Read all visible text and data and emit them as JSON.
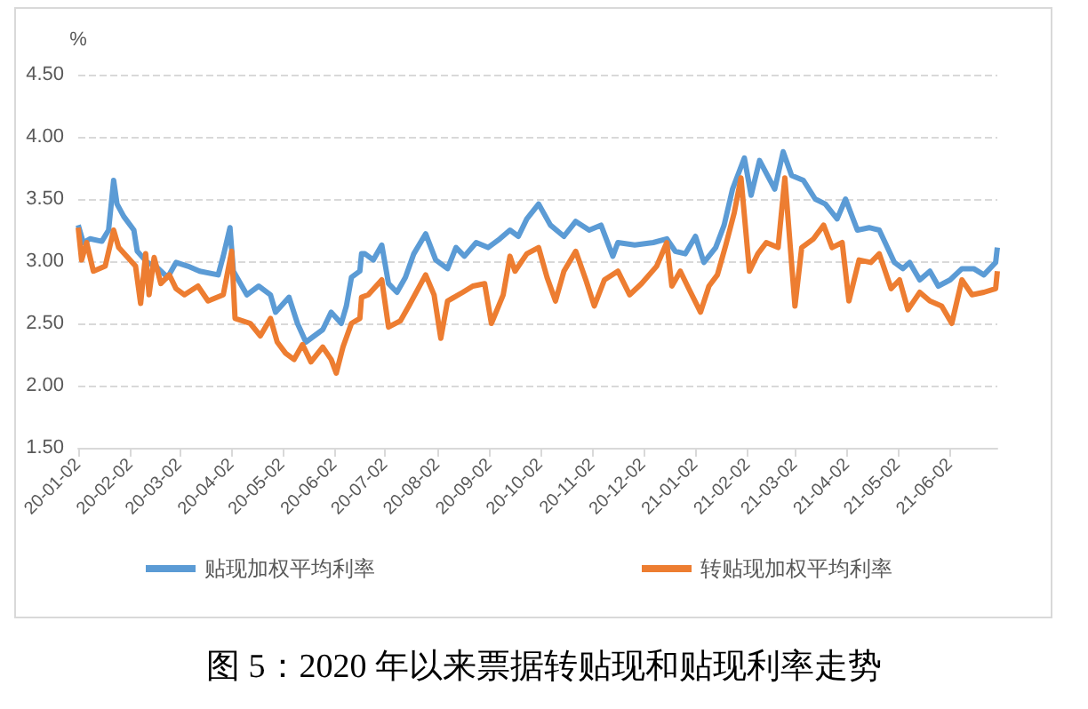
{
  "chart_data": {
    "type": "line",
    "ylabel": "%",
    "annotations": [
      "图 5：2020 年以来票据转贴现和贴现利率走势"
    ],
    "ylim": [
      1.5,
      4.5
    ],
    "yticks": [
      {
        "value": 1.5,
        "label": "1.50"
      },
      {
        "value": 2,
        "label": "2.00"
      },
      {
        "value": 2.5,
        "label": "2.50"
      },
      {
        "value": 3,
        "label": "3.00"
      },
      {
        "value": 3.5,
        "label": "3.50"
      },
      {
        "value": 4,
        "label": "4.00"
      },
      {
        "value": 4.5,
        "label": "4.50"
      }
    ],
    "xlim": [
      "2020-01-02",
      "2021-06-30"
    ],
    "xticks": [
      {
        "value": "2020-01-02",
        "label": "20-01-02"
      },
      {
        "value": "2020-02-02",
        "label": "20-02-02"
      },
      {
        "value": "2020-03-02",
        "label": "20-03-02"
      },
      {
        "value": "2020-04-02",
        "label": "20-04-02"
      },
      {
        "value": "2020-05-02",
        "label": "20-05-02"
      },
      {
        "value": "2020-06-02",
        "label": "20-06-02"
      },
      {
        "value": "2020-07-02",
        "label": "20-07-02"
      },
      {
        "value": "2020-08-02",
        "label": "20-08-02"
      },
      {
        "value": "2020-09-02",
        "label": "20-09-02"
      },
      {
        "value": "2020-10-02",
        "label": "20-10-02"
      },
      {
        "value": "2020-11-02",
        "label": "20-11-02"
      },
      {
        "value": "2020-12-02",
        "label": "20-12-02"
      },
      {
        "value": "2021-01-02",
        "label": "21-01-02"
      },
      {
        "value": "2021-02-02",
        "label": "21-02-02"
      },
      {
        "value": "2021-03-02",
        "label": "21-03-02"
      },
      {
        "value": "2021-04-02",
        "label": "21-04-02"
      },
      {
        "value": "2021-05-02",
        "label": "21-05-02"
      },
      {
        "value": "2021-06-02",
        "label": "21-06-02"
      }
    ],
    "grid": "y",
    "legend": "bottom",
    "marker": "none",
    "line_style": "solid",
    "series": [
      {
        "name": "贴现加权平均利率",
        "color": "#5b9bd5",
        "x": [
          "2020-01-02",
          "2020-01-05",
          "2020-01-09",
          "2020-01-16",
          "2020-01-20",
          "2020-01-23",
          "2020-01-25",
          "2020-01-29",
          "2020-02-04",
          "2020-02-06",
          "2020-02-12",
          "2020-02-17",
          "2020-02-24",
          "2020-02-29",
          "2020-03-07",
          "2020-03-14",
          "2020-03-25",
          "2020-03-28",
          "2020-04-01",
          "2020-04-03",
          "2020-04-11",
          "2020-04-18",
          "2020-04-25",
          "2020-04-28",
          "2020-05-06",
          "2020-05-11",
          "2020-05-16",
          "2020-05-21",
          "2020-05-26",
          "2020-05-31",
          "2020-06-06",
          "2020-06-09",
          "2020-06-12",
          "2020-06-17",
          "2020-06-18",
          "2020-06-20",
          "2020-06-25",
          "2020-06-30",
          "2020-07-04",
          "2020-07-09",
          "2020-07-14",
          "2020-07-19",
          "2020-07-26",
          "2020-08-01",
          "2020-08-08",
          "2020-08-13",
          "2020-08-18",
          "2020-08-25",
          "2020-09-01",
          "2020-09-08",
          "2020-09-14",
          "2020-09-19",
          "2020-09-24",
          "2020-10-01",
          "2020-10-08",
          "2020-10-16",
          "2020-10-23",
          "2020-10-31",
          "2020-11-07",
          "2020-11-14",
          "2020-11-17",
          "2020-11-27",
          "2020-12-08",
          "2020-12-16",
          "2020-12-21",
          "2020-12-27",
          "2021-01-02",
          "2021-01-07",
          "2021-01-14",
          "2021-01-19",
          "2021-01-24",
          "2021-01-31",
          "2021-02-04",
          "2021-02-09",
          "2021-02-18",
          "2021-02-23",
          "2021-02-28",
          "2021-03-07",
          "2021-03-14",
          "2021-03-20",
          "2021-03-27",
          "2021-04-01",
          "2021-04-08",
          "2021-04-15",
          "2021-04-21",
          "2021-04-30",
          "2021-05-05",
          "2021-05-09",
          "2021-05-15",
          "2021-05-21",
          "2021-05-26",
          "2021-06-02",
          "2021-06-09",
          "2021-06-16",
          "2021-06-22",
          "2021-06-29",
          "2021-06-30"
        ],
        "values": [
          3.29,
          3.15,
          3.18,
          3.16,
          3.25,
          3.65,
          3.46,
          3.36,
          3.25,
          3.08,
          2.99,
          2.96,
          2.87,
          2.99,
          2.96,
          2.92,
          2.89,
          3.04,
          3.27,
          2.92,
          2.73,
          2.8,
          2.73,
          2.59,
          2.71,
          2.5,
          2.35,
          2.4,
          2.45,
          2.59,
          2.5,
          2.64,
          2.87,
          2.92,
          3.06,
          3.06,
          3.01,
          3.13,
          2.82,
          2.75,
          2.87,
          3.06,
          3.22,
          3.01,
          2.94,
          3.11,
          3.04,
          3.15,
          3.11,
          3.18,
          3.25,
          3.2,
          3.34,
          3.46,
          3.29,
          3.2,
          3.32,
          3.25,
          3.29,
          3.04,
          3.15,
          3.13,
          3.15,
          3.18,
          3.08,
          3.06,
          3.2,
          2.99,
          3.11,
          3.29,
          3.58,
          3.83,
          3.53,
          3.81,
          3.58,
          3.88,
          3.69,
          3.65,
          3.5,
          3.46,
          3.34,
          3.5,
          3.25,
          3.27,
          3.25,
          2.99,
          2.94,
          2.99,
          2.85,
          2.92,
          2.8,
          2.85,
          2.94,
          2.94,
          2.89,
          2.99,
          3.11
        ]
      },
      {
        "name": "转贴现加权平均利率",
        "color": "#ed7d31",
        "x": [
          "2020-01-02",
          "2020-01-04",
          "2020-01-07",
          "2020-01-11",
          "2020-01-18",
          "2020-01-23",
          "2020-01-26",
          "2020-02-05",
          "2020-02-08",
          "2020-02-11",
          "2020-02-13",
          "2020-02-16",
          "2020-02-20",
          "2020-02-25",
          "2020-02-29",
          "2020-03-05",
          "2020-03-13",
          "2020-03-19",
          "2020-03-28",
          "2020-04-02",
          "2020-04-04",
          "2020-04-13",
          "2020-04-19",
          "2020-04-25",
          "2020-04-29",
          "2020-05-04",
          "2020-05-09",
          "2020-05-14",
          "2020-05-19",
          "2020-05-26",
          "2020-05-31",
          "2020-06-03",
          "2020-06-07",
          "2020-06-12",
          "2020-06-17",
          "2020-06-18",
          "2020-06-22",
          "2020-06-30",
          "2020-07-04",
          "2020-07-11",
          "2020-07-16",
          "2020-07-26",
          "2020-07-31",
          "2020-08-04",
          "2020-08-08",
          "2020-08-17",
          "2020-08-23",
          "2020-08-30",
          "2020-09-03",
          "2020-09-10",
          "2020-09-14",
          "2020-09-17",
          "2020-09-24",
          "2020-10-01",
          "2020-10-06",
          "2020-10-11",
          "2020-10-16",
          "2020-10-23",
          "2020-10-29",
          "2020-11-03",
          "2020-11-09",
          "2020-11-17",
          "2020-11-24",
          "2020-12-01",
          "2020-12-10",
          "2020-12-16",
          "2020-12-19",
          "2020-12-24",
          "2020-12-29",
          "2021-01-05",
          "2021-01-10",
          "2021-01-15",
          "2021-01-20",
          "2021-01-25",
          "2021-01-29",
          "2021-02-03",
          "2021-02-08",
          "2021-02-13",
          "2021-02-20",
          "2021-02-24",
          "2021-03-02",
          "2021-03-06",
          "2021-03-13",
          "2021-03-19",
          "2021-03-24",
          "2021-03-30",
          "2021-04-03",
          "2021-04-09",
          "2021-04-16",
          "2021-04-21",
          "2021-04-28",
          "2021-05-03",
          "2021-05-08",
          "2021-05-15",
          "2021-05-21",
          "2021-05-28",
          "2021-06-03",
          "2021-06-09",
          "2021-06-15",
          "2021-06-22",
          "2021-06-29",
          "2021-06-30"
        ],
        "values": [
          3.27,
          3.01,
          3.15,
          2.92,
          2.96,
          3.25,
          3.11,
          2.96,
          2.66,
          3.06,
          2.73,
          3.03,
          2.82,
          2.89,
          2.78,
          2.73,
          2.8,
          2.68,
          2.73,
          3.08,
          2.54,
          2.5,
          2.4,
          2.54,
          2.35,
          2.26,
          2.21,
          2.33,
          2.19,
          2.31,
          2.21,
          2.1,
          2.31,
          2.5,
          2.54,
          2.71,
          2.73,
          2.85,
          2.47,
          2.52,
          2.64,
          2.89,
          2.73,
          2.38,
          2.68,
          2.75,
          2.8,
          2.82,
          2.5,
          2.73,
          3.04,
          2.92,
          3.06,
          3.11,
          2.87,
          2.68,
          2.92,
          3.08,
          2.85,
          2.64,
          2.85,
          2.92,
          2.73,
          2.82,
          2.96,
          3.15,
          2.8,
          2.92,
          2.78,
          2.59,
          2.8,
          2.89,
          3.13,
          3.39,
          3.67,
          2.92,
          3.06,
          3.15,
          3.11,
          3.67,
          2.64,
          3.11,
          3.18,
          3.29,
          3.11,
          3.15,
          2.68,
          3.01,
          2.99,
          3.06,
          2.78,
          2.85,
          2.61,
          2.75,
          2.68,
          2.64,
          2.5,
          2.85,
          2.73,
          2.75,
          2.78,
          2.92
        ]
      }
    ]
  }
}
